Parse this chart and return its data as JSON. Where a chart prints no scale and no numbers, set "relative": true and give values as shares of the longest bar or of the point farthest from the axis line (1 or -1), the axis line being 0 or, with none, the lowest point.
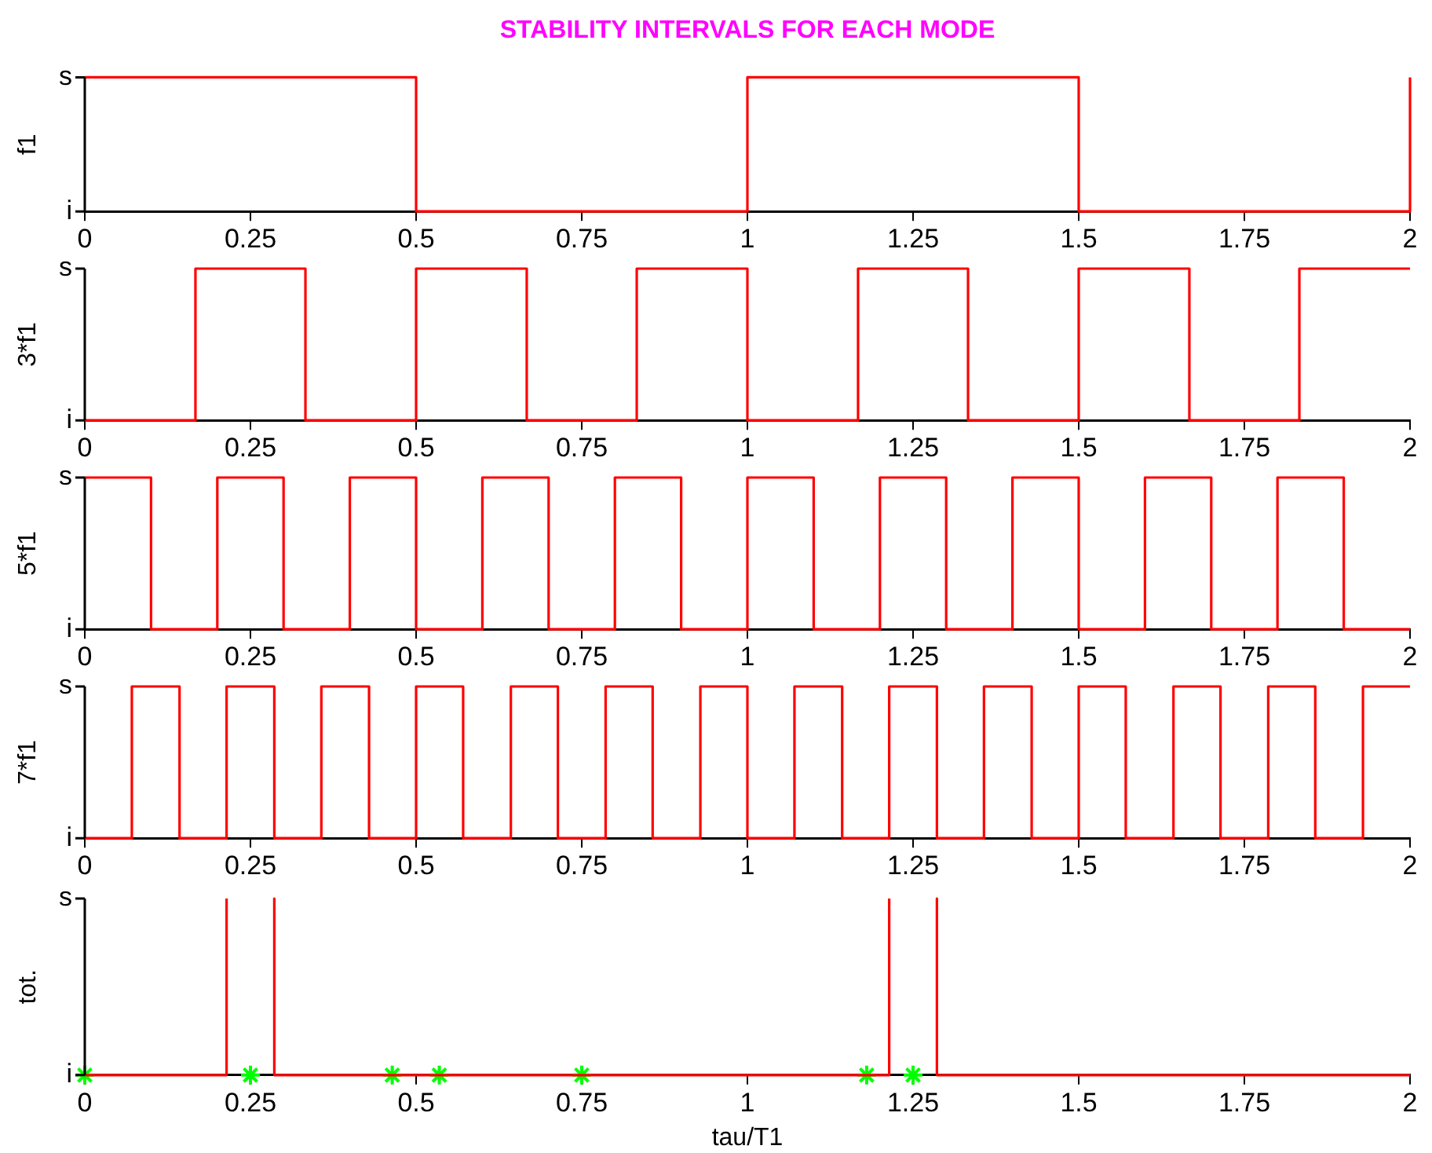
{
  "chart_data": [
    {
      "type": "line",
      "title": "STABILITY INTERVALS FOR EACH MODE",
      "ylabel": "f1",
      "xlim": [
        0,
        2
      ],
      "xticks": [
        0,
        0.25,
        0.5,
        0.75,
        1,
        1.25,
        1.5,
        1.75,
        2
      ],
      "relative": true,
      "annotations": [
        "i",
        "s"
      ],
      "grid": false,
      "legend": false,
      "marker": "none",
      "line_style": "solid",
      "series": [
        {
          "color": "#ff0000",
          "x": [
            0,
            0.5,
            0.5,
            1,
            1,
            1.5,
            1.5,
            2,
            2
          ],
          "values": [
            1,
            1,
            0,
            0,
            1,
            1,
            0,
            0,
            1
          ]
        }
      ]
    },
    {
      "type": "line",
      "ylabel": "3*f1",
      "xlim": [
        0,
        2
      ],
      "xticks": [
        0,
        0.25,
        0.5,
        0.75,
        1,
        1.25,
        1.5,
        1.75,
        2
      ],
      "relative": true,
      "annotations": [
        "i",
        "s"
      ],
      "grid": false,
      "legend": false,
      "marker": "none",
      "line_style": "solid",
      "series": [
        {
          "color": "#ff0000",
          "x": [
            0,
            0.167,
            0.167,
            0.333,
            0.333,
            0.5,
            0.5,
            0.667,
            0.667,
            0.833,
            0.833,
            1,
            1,
            1.167,
            1.167,
            1.333,
            1.333,
            1.5,
            1.5,
            1.667,
            1.667,
            1.833,
            1.833,
            2
          ],
          "values": [
            0,
            0,
            1,
            1,
            0,
            0,
            1,
            1,
            0,
            0,
            1,
            1,
            0,
            0,
            1,
            1,
            0,
            0,
            1,
            1,
            0,
            0,
            1,
            1
          ]
        }
      ]
    },
    {
      "type": "line",
      "ylabel": "5*f1",
      "xlim": [
        0,
        2
      ],
      "xticks": [
        0,
        0.25,
        0.5,
        0.75,
        1,
        1.25,
        1.5,
        1.75,
        2
      ],
      "relative": true,
      "annotations": [
        "i",
        "s"
      ],
      "grid": false,
      "legend": false,
      "marker": "none",
      "line_style": "solid",
      "series": [
        {
          "color": "#ff0000",
          "x": [
            0,
            0.1,
            0.1,
            0.2,
            0.2,
            0.3,
            0.3,
            0.4,
            0.4,
            0.5,
            0.5,
            0.6,
            0.6,
            0.7,
            0.7,
            0.8,
            0.8,
            0.9,
            0.9,
            1,
            1,
            1.1,
            1.1,
            1.2,
            1.2,
            1.3,
            1.3,
            1.4,
            1.4,
            1.5,
            1.5,
            1.6,
            1.6,
            1.7,
            1.7,
            1.8,
            1.8,
            1.9,
            1.9,
            2
          ],
          "values": [
            1,
            1,
            0,
            0,
            1,
            1,
            0,
            0,
            1,
            1,
            0,
            0,
            1,
            1,
            0,
            0,
            1,
            1,
            0,
            0,
            1,
            1,
            0,
            0,
            1,
            1,
            0,
            0,
            1,
            1,
            0,
            0,
            1,
            1,
            0,
            0,
            1,
            1,
            0,
            0
          ]
        }
      ]
    },
    {
      "type": "line",
      "ylabel": "7*f1",
      "xlim": [
        0,
        2
      ],
      "xticks": [
        0,
        0.25,
        0.5,
        0.75,
        1,
        1.25,
        1.5,
        1.75,
        2
      ],
      "relative": true,
      "annotations": [
        "i",
        "s"
      ],
      "grid": false,
      "legend": false,
      "marker": "none",
      "line_style": "solid",
      "series": [
        {
          "color": "#ff0000",
          "x": [
            0,
            0.071,
            0.071,
            0.143,
            0.143,
            0.214,
            0.214,
            0.286,
            0.286,
            0.357,
            0.357,
            0.429,
            0.429,
            0.5,
            0.5,
            0.571,
            0.571,
            0.643,
            0.643,
            0.714,
            0.714,
            0.786,
            0.786,
            0.857,
            0.857,
            0.929,
            0.929,
            1,
            1,
            1.071,
            1.071,
            1.143,
            1.143,
            1.214,
            1.214,
            1.286,
            1.286,
            1.357,
            1.357,
            1.429,
            1.429,
            1.5,
            1.5,
            1.571,
            1.571,
            1.643,
            1.643,
            1.714,
            1.714,
            1.786,
            1.786,
            1.857,
            1.857,
            1.929,
            1.929,
            2
          ],
          "values": [
            0,
            0,
            1,
            1,
            0,
            0,
            1,
            1,
            0,
            0,
            1,
            1,
            0,
            0,
            1,
            1,
            0,
            0,
            1,
            1,
            0,
            0,
            1,
            1,
            0,
            0,
            1,
            1,
            0,
            0,
            1,
            1,
            0,
            0,
            1,
            1,
            0,
            0,
            1,
            1,
            0,
            0,
            1,
            1,
            0,
            0,
            1,
            1,
            0,
            0,
            1,
            1,
            0,
            0,
            1,
            1
          ]
        }
      ]
    },
    {
      "type": "line",
      "ylabel": "tot.",
      "xlabel": "tau/T1",
      "xlim": [
        0,
        2
      ],
      "xticks": [
        0,
        0.25,
        0.5,
        0.75,
        1,
        1.25,
        1.5,
        1.75,
        2
      ],
      "relative": true,
      "annotations": [
        "i",
        "s"
      ],
      "grid": false,
      "legend": false,
      "marker": "none",
      "line_style": "solid",
      "series": [
        {
          "color": "#ff0000",
          "x": [
            0,
            0.214,
            0.214,
            0.25,
            0.286,
            0.286,
            1.214,
            1.214,
            1.25,
            1.286,
            1.286,
            2
          ],
          "values": [
            0,
            0,
            1,
            null,
            1,
            0,
            0,
            1,
            null,
            1,
            0,
            0
          ]
        },
        {
          "type": "scatter",
          "marker": "cross",
          "color": "#00ff00",
          "x": [
            0,
            0.25,
            0.464,
            0.535,
            0.75,
            1.18,
            1.25
          ],
          "values": [
            0,
            0,
            0,
            0,
            0,
            0,
            0
          ]
        }
      ]
    }
  ]
}
